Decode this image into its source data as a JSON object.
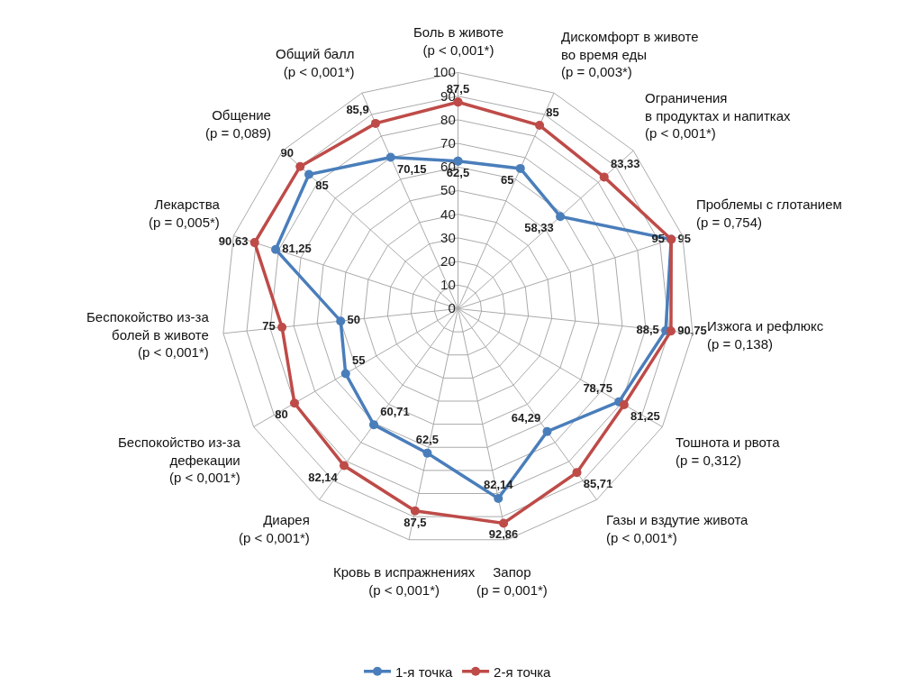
{
  "chart_data": {
    "type": "radar",
    "categories": [
      "Боль в животе\n(p < 0,001*)",
      "Дискомфорт в животе\nво время еды\n(p = 0,003*)",
      "Ограничения\nв продуктах и напитках\n(p < 0,001*)",
      "Проблемы с глотанием\n(p = 0,754)",
      "Изжога и рефлюкс\n(p = 0,138)",
      "Тошнота и рвота\n(p = 0,312)",
      "Газы и вздутие живота\n(p < 0,001*)",
      "Запор\n(p = 0,001*)",
      "Кровь в испражнениях\n(p < 0,001*)",
      "Диарея\n(p < 0,001*)",
      "Беспокойство из-за\nдефекации\n(p < 0,001*)",
      "Беспокойство из-за\nболей в животе\n(p < 0,001*)",
      "Лекарства\n(p = 0,005*)",
      "Общение\n(p = 0,089)",
      "Общий балл\n(p < 0,001*)"
    ],
    "series": [
      {
        "name": "1-я точка",
        "color": "#4a7ebb",
        "values": [
          62.5,
          65,
          58.33,
          95,
          88.5,
          78.75,
          64.29,
          82.14,
          62.5,
          60.71,
          55,
          50,
          81.25,
          85,
          70.15
        ],
        "value_labels": [
          "62,5",
          "65",
          "58,33",
          "95",
          "88,5",
          "78,75",
          "64,29",
          "82,14",
          "62,5",
          "60,71",
          "55",
          "50",
          "81,25",
          "85",
          "70,15"
        ]
      },
      {
        "name": "2-я точка",
        "color": "#be4b48",
        "values": [
          87.5,
          85,
          83.33,
          95,
          90.75,
          81.25,
          85.71,
          92.86,
          87.5,
          82.14,
          80,
          75,
          90.63,
          90,
          85.9
        ],
        "value_labels": [
          "87,5",
          "85",
          "83,33",
          "95",
          "90,75",
          "81,25",
          "85,71",
          "92,86",
          "87,5",
          "82,14",
          "80",
          "75",
          "90,63",
          "90",
          "85,9"
        ]
      }
    ],
    "ylim": [
      0,
      100
    ],
    "yticks": [
      0,
      10,
      20,
      30,
      40,
      50,
      60,
      70,
      80,
      90,
      100
    ],
    "grid": true,
    "legend": "bottom",
    "marker": "circle",
    "line_style": "solid"
  }
}
